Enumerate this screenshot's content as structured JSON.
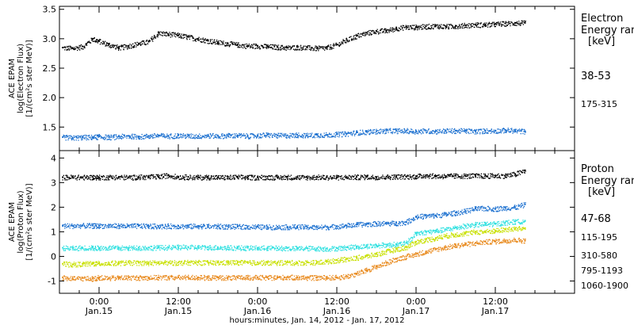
{
  "instrument_label": "ACE EPAM",
  "xlabel": "hours:minutes, Jan. 14, 2012 - Jan. 17, 2012",
  "x_ticks": [
    {
      "t": 0.0,
      "time": "0:00",
      "date": "Jan.15"
    },
    {
      "t": 12.0,
      "time": "12:00",
      "date": "Jan.15"
    },
    {
      "t": 24.0,
      "time": "0:00",
      "date": "Jan.16"
    },
    {
      "t": 36.0,
      "time": "12:00",
      "date": "Jan.16"
    },
    {
      "t": 48.0,
      "time": "0:00",
      "date": "Jan.17"
    },
    {
      "t": 60.0,
      "time": "12:00",
      "date": "Jan.17"
    }
  ],
  "chart_data": [
    {
      "type": "scatter",
      "panel": "electron",
      "ylabel_line1": "log(Electron Flux)",
      "ylabel_line2": "[1/(cm²s ster MeV)]",
      "ylim": [
        1.1,
        3.55
      ],
      "xlim": [
        -6.0,
        72.0
      ],
      "y_ticks": [
        "1.5",
        "2.0",
        "2.5",
        "3.0",
        "3.5"
      ],
      "legend_title": "Electron",
      "legend_subtitle": "Energy ran",
      "legend_units": "[keV]",
      "series": [
        {
          "name": "38-53",
          "color": "#000000",
          "x": [
            -5.5,
            -4,
            -2.5,
            -1,
            0,
            1.5,
            3,
            4.5,
            6,
            7.5,
            9,
            10.5,
            12,
            13.5,
            15,
            16.5,
            18,
            19.5,
            21,
            22.5,
            24,
            25.5,
            27,
            28.5,
            30,
            31.5,
            33,
            34.5,
            36,
            37.5,
            39,
            40.5,
            42,
            43.5,
            45,
            46.5,
            48,
            49.5,
            51,
            52.5,
            54,
            55.5,
            57,
            58.5,
            60,
            61.5,
            63,
            64.5
          ],
          "y": [
            2.85,
            2.84,
            2.87,
            3.0,
            2.96,
            2.9,
            2.85,
            2.88,
            2.92,
            2.95,
            3.1,
            3.08,
            3.06,
            3.03,
            3.0,
            2.97,
            2.94,
            2.92,
            2.9,
            2.88,
            2.88,
            2.87,
            2.86,
            2.85,
            2.86,
            2.85,
            2.84,
            2.85,
            2.9,
            2.98,
            3.05,
            3.1,
            3.13,
            3.14,
            3.18,
            3.2,
            3.2,
            3.21,
            3.22,
            3.21,
            3.22,
            3.23,
            3.24,
            3.24,
            3.25,
            3.26,
            3.27,
            3.27
          ]
        },
        {
          "name": "175-315",
          "color": "#1a6fcf",
          "x": [
            -5.5,
            -4,
            -2.5,
            -1,
            0,
            1.5,
            3,
            4.5,
            6,
            7.5,
            9,
            10.5,
            12,
            13.5,
            15,
            16.5,
            18,
            19.5,
            21,
            22.5,
            24,
            25.5,
            27,
            28.5,
            30,
            31.5,
            33,
            34.5,
            36,
            37.5,
            39,
            40.5,
            42,
            43.5,
            45,
            46.5,
            48,
            49.5,
            51,
            52.5,
            54,
            55.5,
            57,
            58.5,
            60,
            61.5,
            63,
            64.5
          ],
          "y": [
            1.33,
            1.32,
            1.33,
            1.33,
            1.34,
            1.33,
            1.34,
            1.35,
            1.34,
            1.35,
            1.36,
            1.35,
            1.36,
            1.35,
            1.35,
            1.36,
            1.35,
            1.36,
            1.36,
            1.35,
            1.36,
            1.37,
            1.36,
            1.36,
            1.37,
            1.36,
            1.37,
            1.37,
            1.38,
            1.39,
            1.41,
            1.42,
            1.43,
            1.44,
            1.44,
            1.44,
            1.43,
            1.44,
            1.43,
            1.44,
            1.44,
            1.44,
            1.43,
            1.44,
            1.44,
            1.45,
            1.44,
            1.43
          ]
        }
      ]
    },
    {
      "type": "scatter",
      "panel": "proton",
      "ylabel_line1": "log(Proton Flux)",
      "ylabel_line2": "[1/(cm²s ster MeV)]",
      "ylim": [
        -1.5,
        4.3
      ],
      "xlim": [
        -6.0,
        72.0
      ],
      "y_ticks": [
        "-1",
        "0",
        "1",
        "2",
        "3",
        "4"
      ],
      "legend_title": "Proton",
      "legend_subtitle": "Energy ran",
      "legend_units": "[keV]",
      "series": [
        {
          "name": "47-68",
          "color": "#000000",
          "x": [
            -5.5,
            -4,
            -2.5,
            -1,
            0,
            1.5,
            3,
            4.5,
            6,
            7.5,
            9,
            10.5,
            12,
            13.5,
            15,
            16.5,
            18,
            19.5,
            21,
            22.5,
            24,
            25.5,
            27,
            28.5,
            30,
            31.5,
            33,
            34.5,
            36,
            37.5,
            39,
            40.5,
            42,
            43.5,
            45,
            46.5,
            48,
            49.5,
            51,
            52.5,
            54,
            55.5,
            57,
            58.5,
            60,
            61.5,
            63,
            64.5
          ],
          "y": [
            3.22,
            3.23,
            3.22,
            3.23,
            3.22,
            3.23,
            3.23,
            3.22,
            3.23,
            3.24,
            3.25,
            3.3,
            3.24,
            3.23,
            3.22,
            3.23,
            3.22,
            3.22,
            3.23,
            3.22,
            3.22,
            3.23,
            3.22,
            3.23,
            3.22,
            3.22,
            3.23,
            3.22,
            3.22,
            3.23,
            3.23,
            3.24,
            3.23,
            3.24,
            3.25,
            3.25,
            3.26,
            3.3,
            3.27,
            3.27,
            3.28,
            3.28,
            3.28,
            3.28,
            3.29,
            3.29,
            3.35,
            3.5
          ]
        },
        {
          "name": "115-195",
          "color": "#1a6fcf",
          "x": [
            -5.5,
            -4,
            -2.5,
            -1,
            0,
            1.5,
            3,
            4.5,
            6,
            7.5,
            9,
            10.5,
            12,
            13.5,
            15,
            16.5,
            18,
            19.5,
            21,
            22.5,
            24,
            25.5,
            27,
            28.5,
            30,
            31.5,
            33,
            34.5,
            36,
            37.5,
            39,
            40.5,
            42,
            43.5,
            45,
            46.5,
            48,
            49.5,
            51,
            52.5,
            54,
            55.5,
            57,
            58.5,
            60,
            61.5,
            63,
            64.5
          ],
          "y": [
            1.25,
            1.25,
            1.26,
            1.25,
            1.25,
            1.26,
            1.25,
            1.24,
            1.25,
            1.24,
            1.23,
            1.24,
            1.24,
            1.23,
            1.24,
            1.23,
            1.23,
            1.22,
            1.22,
            1.21,
            1.21,
            1.2,
            1.2,
            1.2,
            1.21,
            1.2,
            1.19,
            1.2,
            1.23,
            1.26,
            1.3,
            1.32,
            1.34,
            1.35,
            1.36,
            1.4,
            1.62,
            1.65,
            1.67,
            1.72,
            1.78,
            1.85,
            1.95,
            1.96,
            1.94,
            1.98,
            2.0,
            2.12
          ]
        },
        {
          "name": "310-580",
          "color": "#2ee0e0",
          "x": [
            -5.5,
            -4,
            -2.5,
            -1,
            0,
            1.5,
            3,
            4.5,
            6,
            7.5,
            9,
            10.5,
            12,
            13.5,
            15,
            16.5,
            18,
            19.5,
            21,
            22.5,
            24,
            25.5,
            27,
            28.5,
            30,
            31.5,
            33,
            34.5,
            36,
            37.5,
            39,
            40.5,
            42,
            43.5,
            45,
            46.5,
            48,
            49.5,
            51,
            52.5,
            54,
            55.5,
            57,
            58.5,
            60,
            61.5,
            63,
            64.5
          ],
          "y": [
            0.35,
            0.34,
            0.36,
            0.35,
            0.35,
            0.36,
            0.35,
            0.35,
            0.36,
            0.36,
            0.37,
            0.37,
            0.38,
            0.38,
            0.38,
            0.37,
            0.37,
            0.36,
            0.36,
            0.35,
            0.35,
            0.35,
            0.34,
            0.34,
            0.33,
            0.34,
            0.33,
            0.32,
            0.34,
            0.37,
            0.4,
            0.43,
            0.45,
            0.48,
            0.5,
            0.55,
            0.95,
            1.0,
            1.05,
            1.1,
            1.18,
            1.25,
            1.3,
            1.32,
            1.33,
            1.38,
            1.42,
            1.45
          ]
        },
        {
          "name": "795-1193",
          "color": "#c8e000",
          "x": [
            -5.5,
            -4,
            -2.5,
            -1,
            0,
            1.5,
            3,
            4.5,
            6,
            7.5,
            9,
            10.5,
            12,
            13.5,
            15,
            16.5,
            18,
            19.5,
            21,
            22.5,
            24,
            25.5,
            27,
            28.5,
            30,
            31.5,
            33,
            34.5,
            36,
            37.5,
            39,
            40.5,
            42,
            43.5,
            45,
            46.5,
            48,
            49.5,
            51,
            52.5,
            54,
            55.5,
            57,
            58.5,
            60,
            61.5,
            63,
            64.5
          ],
          "y": [
            -0.3,
            -0.32,
            -0.3,
            -0.28,
            -0.28,
            -0.27,
            -0.26,
            -0.25,
            -0.25,
            -0.26,
            -0.25,
            -0.25,
            -0.25,
            -0.24,
            -0.24,
            -0.25,
            -0.25,
            -0.24,
            -0.24,
            -0.25,
            -0.24,
            -0.25,
            -0.25,
            -0.24,
            -0.25,
            -0.24,
            -0.24,
            -0.2,
            -0.15,
            -0.1,
            -0.05,
            0.02,
            0.1,
            0.2,
            0.3,
            0.38,
            0.6,
            0.68,
            0.75,
            0.85,
            0.9,
            0.95,
            1.0,
            1.02,
            1.05,
            1.1,
            1.13,
            1.15
          ]
        },
        {
          "name": "1060-1900",
          "color": "#e8891c",
          "x": [
            -5.5,
            -4,
            -2.5,
            -1,
            0,
            1.5,
            3,
            4.5,
            6,
            7.5,
            9,
            10.5,
            12,
            13.5,
            15,
            16.5,
            18,
            19.5,
            21,
            22.5,
            24,
            25.5,
            27,
            28.5,
            30,
            31.5,
            33,
            34.5,
            36,
            37.5,
            39,
            40.5,
            42,
            43.5,
            45,
            46.5,
            48,
            49.5,
            51,
            52.5,
            54,
            55.5,
            57,
            58.5,
            60,
            61.5,
            63,
            64.5
          ],
          "y": [
            -0.85,
            -0.9,
            -0.88,
            -0.9,
            -0.85,
            -0.88,
            -0.86,
            -0.85,
            -0.86,
            -0.85,
            -0.85,
            -0.84,
            -0.85,
            -0.84,
            -0.85,
            -0.86,
            -0.85,
            -0.86,
            -0.86,
            -0.85,
            -0.85,
            -0.86,
            -0.85,
            -0.84,
            -0.85,
            -0.86,
            -0.86,
            -0.85,
            -0.85,
            -0.8,
            -0.7,
            -0.55,
            -0.4,
            -0.25,
            -0.1,
            0.0,
            0.1,
            0.2,
            0.3,
            0.38,
            0.45,
            0.5,
            0.55,
            0.6,
            0.62,
            0.65,
            0.68,
            0.65
          ]
        }
      ]
    }
  ]
}
